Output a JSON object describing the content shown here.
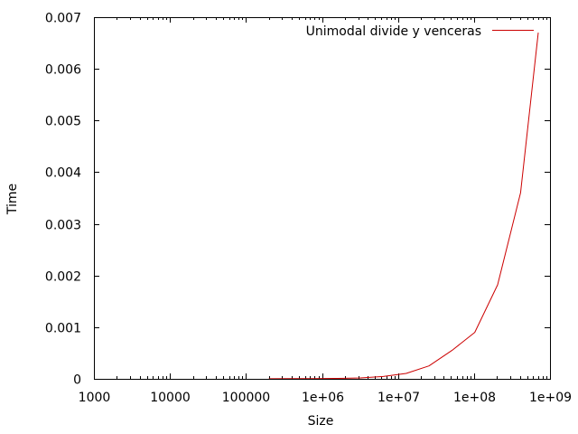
{
  "chart_data": {
    "type": "line",
    "xlabel": "Size",
    "ylabel": "Time",
    "x_scale": "log",
    "xlim": [
      1000,
      1000000000
    ],
    "ylim": [
      0,
      0.007
    ],
    "x_ticks": [
      {
        "value": 1000,
        "label": "1000"
      },
      {
        "value": 10000,
        "label": "10000"
      },
      {
        "value": 100000,
        "label": "100000"
      },
      {
        "value": 1000000,
        "label": "1e+06"
      },
      {
        "value": 10000000,
        "label": "1e+07"
      },
      {
        "value": 100000000,
        "label": "1e+08"
      },
      {
        "value": 1000000000,
        "label": "1e+09"
      }
    ],
    "y_ticks": [
      {
        "value": 0,
        "label": "0"
      },
      {
        "value": 0.001,
        "label": "0.001"
      },
      {
        "value": 0.002,
        "label": "0.002"
      },
      {
        "value": 0.003,
        "label": "0.003"
      },
      {
        "value": 0.004,
        "label": "0.004"
      },
      {
        "value": 0.005,
        "label": "0.005"
      },
      {
        "value": 0.006,
        "label": "0.006"
      },
      {
        "value": 0.007,
        "label": "0.007"
      }
    ],
    "legend_position": "top-right",
    "grid": false,
    "series": [
      {
        "name": "Unimodal divide y venceras",
        "color": "#cc0000",
        "x": [
          200000,
          400000,
          800000,
          1600000,
          3200000,
          6400000,
          12800000,
          25600000,
          51200000,
          102400000,
          204800000,
          409600000,
          700000000
        ],
        "y": [
          2.5e-06,
          4e-06,
          5.5e-06,
          9e-06,
          1.8e-05,
          4.5e-05,
          0.000105,
          0.00025,
          0.00055,
          0.0009,
          0.00182,
          0.0036,
          0.0067
        ]
      }
    ]
  }
}
